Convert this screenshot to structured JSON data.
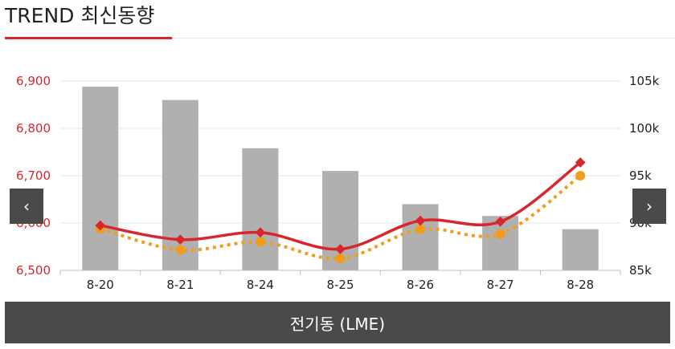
{
  "header": {
    "title": "TREND 최신동향"
  },
  "nav": {
    "prev_icon": "chevron-left-icon",
    "next_icon": "chevron-right-icon",
    "prev_glyph": "‹",
    "next_glyph": "›"
  },
  "footer": {
    "label": "전기동 (LME)"
  },
  "colors": {
    "accent": "#d9262c",
    "bars": "#b0b0b0",
    "dotted": "#f39c1c",
    "footer_bg": "#4a4a4a"
  },
  "chart_data": {
    "type": "bar",
    "categories": [
      "8-20",
      "8-21",
      "8-24",
      "8-25",
      "8-26",
      "8-27",
      "8-28"
    ],
    "y_left": {
      "ticks": [
        "6,900",
        "6,800",
        "6,700",
        "6,600",
        "6,500"
      ],
      "ylim": [
        6500,
        6900
      ]
    },
    "y_right": {
      "ticks": [
        "105k",
        "100k",
        "95k",
        "90k",
        "85k"
      ],
      "ylim": [
        85000,
        105000
      ]
    },
    "series": [
      {
        "type": "bar",
        "axis": "left",
        "values": [
          6888,
          6860,
          6758,
          6710,
          6640,
          6615,
          6587
        ]
      },
      {
        "type": "line",
        "axis": "left",
        "style": "solid",
        "values": [
          6595,
          6565,
          6580,
          6545,
          6605,
          6603,
          6728
        ]
      },
      {
        "type": "line",
        "axis": "left",
        "style": "dotted",
        "values": [
          6588,
          6543,
          6560,
          6525,
          6587,
          6577,
          6700
        ]
      }
    ],
    "grid": true,
    "legend": "none"
  }
}
